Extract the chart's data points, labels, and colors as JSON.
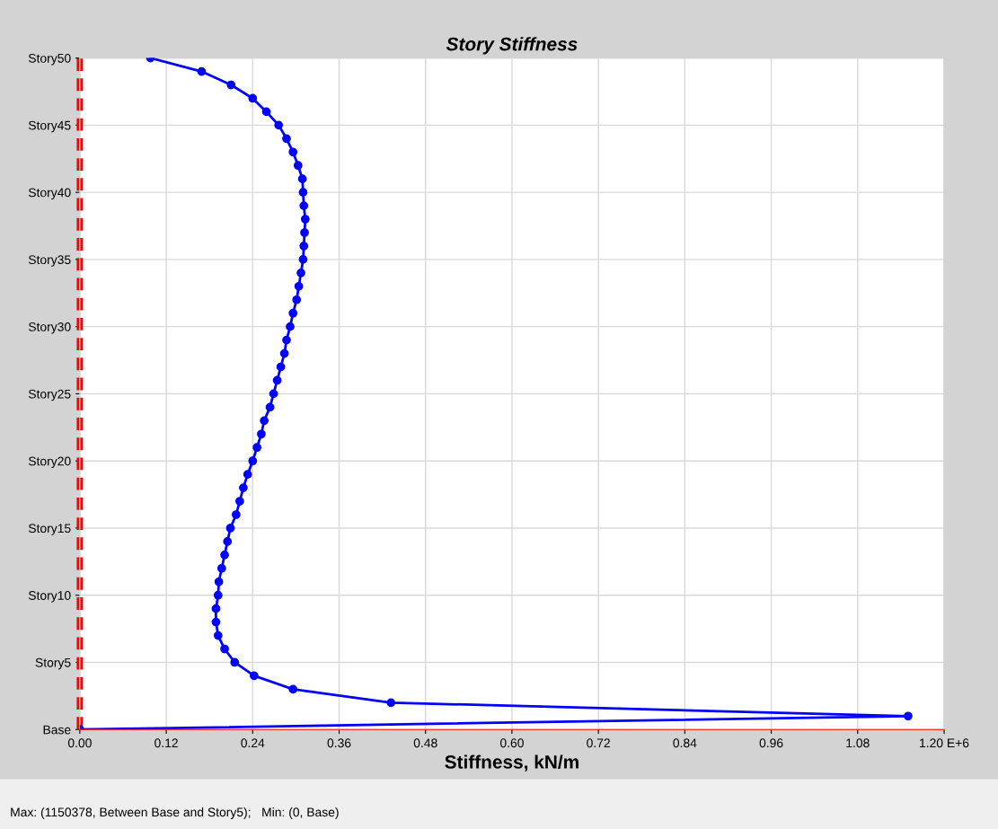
{
  "chart_data": {
    "type": "line",
    "orientation": "horizontal",
    "title": "Story Stiffness",
    "xlabel": "Stiffness, kN/m",
    "xlim": [
      0,
      1.2
    ],
    "xticks": [
      {
        "value": 0,
        "label": "0.00"
      },
      {
        "value": 0.12,
        "label": "0.12"
      },
      {
        "value": 0.24,
        "label": "0.24"
      },
      {
        "value": 0.36,
        "label": "0.36"
      },
      {
        "value": 0.48,
        "label": "0.48"
      },
      {
        "value": 0.6,
        "label": "0.60"
      },
      {
        "value": 0.72,
        "label": "0.72"
      },
      {
        "value": 0.84,
        "label": "0.84"
      },
      {
        "value": 0.96,
        "label": "0.96"
      },
      {
        "value": 1.08,
        "label": "1.08"
      },
      {
        "value": 1.2,
        "label": "1.20 E+6"
      }
    ],
    "categories": [
      "Story50",
      null,
      null,
      null,
      null,
      "Story45",
      null,
      null,
      null,
      null,
      "Story40",
      null,
      null,
      null,
      null,
      "Story35",
      null,
      null,
      null,
      null,
      "Story30",
      null,
      null,
      null,
      null,
      "Story25",
      null,
      null,
      null,
      null,
      "Story20",
      null,
      null,
      null,
      null,
      "Story15",
      null,
      null,
      null,
      null,
      "Story10",
      null,
      null,
      null,
      null,
      "Story5",
      null,
      null,
      null,
      null,
      "Base"
    ],
    "grid": true,
    "marker": "circle",
    "line_style": "solid",
    "series": [
      {
        "color": "#0000ff",
        "values": [
          0.098,
          0.169,
          0.21,
          0.24,
          0.259,
          0.276,
          0.287,
          0.296,
          0.303,
          0.309,
          0.31,
          0.311,
          0.313,
          0.312,
          0.311,
          0.31,
          0.307,
          0.304,
          0.301,
          0.296,
          0.292,
          0.287,
          0.284,
          0.279,
          0.274,
          0.269,
          0.264,
          0.256,
          0.252,
          0.246,
          0.24,
          0.233,
          0.227,
          0.222,
          0.217,
          0.209,
          0.205,
          0.201,
          0.197,
          0.193,
          0.192,
          0.189,
          0.189,
          0.192,
          0.201,
          0.215,
          0.242,
          0.296,
          0.432,
          1.15,
          0
        ]
      }
    ],
    "ref_lines": [
      {
        "axis": "x",
        "value": 0,
        "color": "#ff0000",
        "line_style": "dashed"
      }
    ],
    "annotations": [
      "Max: (1150378, Between Base and Story5);   Min: (0, Base)"
    ]
  }
}
